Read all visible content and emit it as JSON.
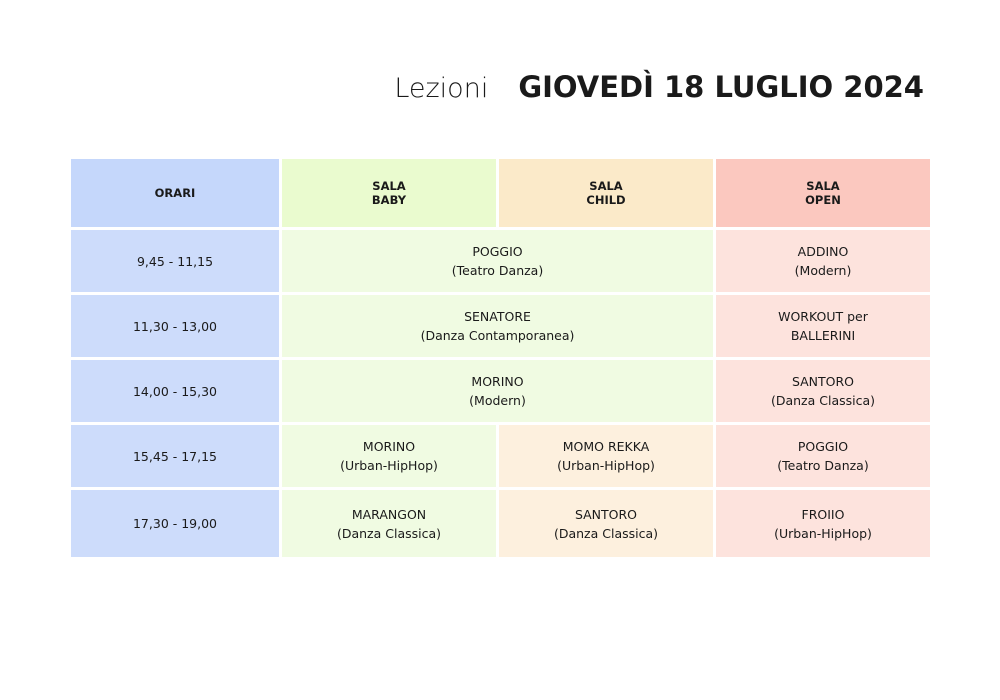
{
  "header": {
    "label": "Lezioni",
    "date": "GIOVEDÌ 18 LUGLIO 2024"
  },
  "table": {
    "columns": {
      "orari": "ORARI",
      "baby": [
        "SALA",
        "BABY"
      ],
      "child": [
        "SALA",
        "CHILD"
      ],
      "open": [
        "SALA",
        "OPEN"
      ]
    },
    "rows": [
      {
        "time": "9,45 - 11,15",
        "baby_child": {
          "name": "POGGIO",
          "style": "(Teatro Danza)"
        },
        "open": {
          "name": "ADDINO",
          "style": "(Modern)"
        }
      },
      {
        "time": "11,30 - 13,00",
        "baby_child": {
          "name": "SENATORE",
          "style": "(Danza Contamporanea)"
        },
        "open": {
          "name": "WORKOUT per",
          "style": "BALLERINI"
        }
      },
      {
        "time": "14,00 - 15,30",
        "baby_child": {
          "name": "MORINO",
          "style": "(Modern)"
        },
        "open": {
          "name": "SANTORO",
          "style": "(Danza Classica)"
        }
      },
      {
        "time": "15,45 - 17,15",
        "baby": {
          "name": "MORINO",
          "style": "(Urban-HipHop)"
        },
        "child": {
          "name": "MOMO REKKA",
          "style": "(Urban-HipHop)"
        },
        "open": {
          "name": "POGGIO",
          "style": "(Teatro Danza)"
        }
      },
      {
        "time": "17,30 - 19,00",
        "baby": {
          "name": "MARANGON",
          "style": "(Danza Classica)"
        },
        "child": {
          "name": "SANTORO",
          "style": "(Danza Classica)"
        },
        "open": {
          "name": "FROIIO",
          "style": "(Urban-HipHop)"
        }
      }
    ]
  },
  "colors": {
    "orari_header": "#c5d7fb",
    "baby_header": "#eafbcf",
    "child_header": "#fbeac9",
    "open_header": "#fbc8bf",
    "time_cells": "#cddcfb",
    "baby_cells": "#f0fbe2",
    "child_cells": "#fdf0de",
    "open_cells": "#fde3dd"
  }
}
